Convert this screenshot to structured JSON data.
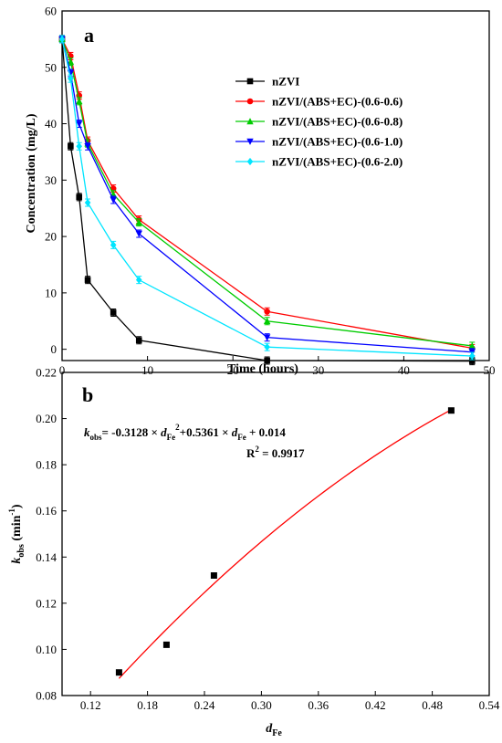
{
  "chart_data": [
    {
      "type": "line",
      "panel_label": "a",
      "xlabel": "Time (hours)",
      "ylabel": "Concentration (mg/L)",
      "xlim": [
        0,
        50
      ],
      "ylim": [
        -2,
        60
      ],
      "xticks": [
        0,
        10,
        20,
        30,
        40,
        50
      ],
      "yticks": [
        0,
        10,
        20,
        30,
        40,
        50,
        60
      ],
      "x": [
        0,
        1,
        2,
        3,
        6,
        9,
        24,
        48
      ],
      "error_bars": true,
      "legend_position": "top-right",
      "series": [
        {
          "name": "nZVI",
          "color": "#000000",
          "marker": "square",
          "values": [
            55,
            36,
            27,
            12.3,
            6.5,
            1.6,
            -2.0,
            -2.1
          ]
        },
        {
          "name": "nZVI/(ABS+EC)-(0.6-0.6)",
          "color": "#ff0000",
          "marker": "circle",
          "values": [
            55,
            52,
            45,
            37,
            28.5,
            23,
            6.7,
            0.2
          ]
        },
        {
          "name": "nZVI/(ABS+EC)-(0.6-0.8)",
          "color": "#00cc00",
          "marker": "triangle-up",
          "values": [
            55,
            51,
            44,
            36.5,
            27.5,
            22.5,
            5.0,
            0.6
          ]
        },
        {
          "name": "nZVI/(ABS+EC)-(0.6-1.0)",
          "color": "#0000ff",
          "marker": "triangle-down",
          "values": [
            55,
            49,
            40,
            36,
            26.5,
            20.5,
            2.1,
            -0.5
          ]
        },
        {
          "name": "nZVI/(ABS+EC)-(0.6-2.0)",
          "color": "#00e5ff",
          "marker": "diamond",
          "values": [
            55,
            48,
            36,
            26,
            18.5,
            12.3,
            0.4,
            -1.2
          ]
        }
      ]
    },
    {
      "type": "scatter",
      "panel_label": "b",
      "xlabel_main": "d",
      "xlabel_sub": "Fe",
      "ylabel_main": "k",
      "ylabel_sub": "obs",
      "ylabel_tail": " (min",
      "ylabel_sup": "-1",
      "ylabel_close": ")",
      "xlim": [
        0.09,
        0.54
      ],
      "ylim": [
        0.08,
        0.22
      ],
      "xticks": [
        "0.12",
        "0.18",
        "0.24",
        "0.30",
        "0.36",
        "0.42",
        "0.48",
        "0.54"
      ],
      "yticks": [
        "0.08",
        "0.10",
        "0.12",
        "0.14",
        "0.16",
        "0.18",
        "0.20",
        "0.22"
      ],
      "x": [
        0.15,
        0.2,
        0.25,
        0.5
      ],
      "values": [
        0.09,
        0.102,
        0.132,
        0.2035
      ],
      "marker_color": "#000000",
      "fit": {
        "color": "#ff0000",
        "a": -0.3128,
        "b": 0.5361,
        "c": 0.014,
        "x_range": [
          0.15,
          0.5
        ]
      },
      "equation": {
        "k": "k",
        "k_sub": "obs",
        "part1": "= -0.3128  × ",
        "d1": "d",
        "d1_sub": "Fe",
        "sup2": "2",
        "part2": "+0.5361 × ",
        "d2": "d",
        "d2_sub": "Fe",
        "part3": " + 0.014",
        "r2": "R",
        "r2_sup": "2",
        "r2_value": " = 0.9917"
      }
    }
  ]
}
